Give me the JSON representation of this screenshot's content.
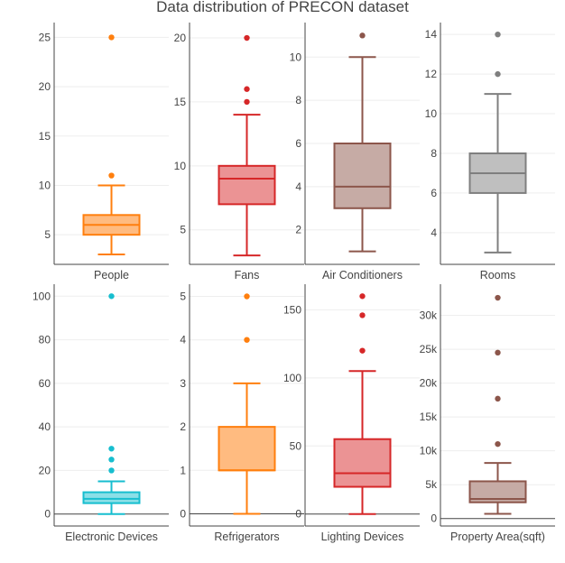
{
  "title": "Data distribution of PRECON dataset",
  "chart_data": [
    {
      "type": "box",
      "xlabel": "People",
      "color": "#ff7f0e",
      "fill": "#ffbb80",
      "ylim": [
        2,
        26.5
      ],
      "yticks": [
        5,
        10,
        15,
        20,
        25
      ],
      "tick_labels": [
        "5",
        "10",
        "15",
        "20",
        "25"
      ],
      "min": 3,
      "q1": 5,
      "median": 6,
      "q3": 7,
      "max": 10,
      "outliers": [
        11,
        25
      ]
    },
    {
      "type": "box",
      "xlabel": "Fans",
      "color": "#d62728",
      "fill": "#eb9394",
      "ylim": [
        2.3,
        21.2
      ],
      "yticks": [
        5,
        10,
        15,
        20
      ],
      "tick_labels": [
        "5",
        "10",
        "15",
        "20"
      ],
      "min": 3,
      "q1": 7,
      "median": 9,
      "q3": 10,
      "max": 14,
      "outliers": [
        15,
        16,
        20
      ]
    },
    {
      "type": "box",
      "xlabel": "Air Conditioners",
      "color": "#8c564b",
      "fill": "#c6aba5",
      "ylim": [
        0.4,
        11.6
      ],
      "yticks": [
        2,
        4,
        6,
        8,
        10
      ],
      "tick_labels": [
        "2",
        "4",
        "6",
        "8",
        "10"
      ],
      "min": 1,
      "q1": 3,
      "median": 4,
      "q3": 6,
      "max": 10,
      "outliers": [
        11
      ]
    },
    {
      "type": "box",
      "xlabel": "Rooms",
      "color": "#7f7f7f",
      "fill": "#bfbfbf",
      "ylim": [
        2.4,
        14.6
      ],
      "yticks": [
        4,
        6,
        8,
        10,
        12,
        14
      ],
      "tick_labels": [
        "4",
        "6",
        "8",
        "10",
        "12",
        "14"
      ],
      "min": 3,
      "q1": 6,
      "median": 7,
      "q3": 8,
      "max": 11,
      "outliers": [
        12,
        14
      ]
    },
    {
      "type": "box",
      "xlabel": "Electronic Devices",
      "color": "#17becf",
      "fill": "#8bdfe7",
      "ylim": [
        -5.5,
        105.5
      ],
      "yticks": [
        0,
        20,
        40,
        60,
        80,
        100
      ],
      "tick_labels": [
        "0",
        "20",
        "40",
        "60",
        "80",
        "100"
      ],
      "min": 0,
      "q1": 5,
      "median": 7,
      "q3": 10,
      "max": 15,
      "outliers": [
        20,
        25,
        30,
        100
      ]
    },
    {
      "type": "box",
      "xlabel": "Refrigerators",
      "color": "#ff7f0e",
      "fill": "#ffbb80",
      "ylim": [
        -0.28,
        5.28
      ],
      "yticks": [
        0,
        1,
        2,
        3,
        4,
        5
      ],
      "tick_labels": [
        "0",
        "1",
        "2",
        "3",
        "4",
        "5"
      ],
      "min": 0,
      "q1": 1,
      "median": 1,
      "q3": 2,
      "max": 3,
      "outliers": [
        4,
        5
      ]
    },
    {
      "type": "box",
      "xlabel": "Lighting Devices",
      "color": "#d62728",
      "fill": "#eb9394",
      "ylim": [
        -8.8,
        168.8
      ],
      "yticks": [
        0,
        50,
        100,
        150
      ],
      "tick_labels": [
        "0",
        "50",
        "100",
        "150"
      ],
      "min": 0,
      "q1": 20,
      "median": 30,
      "q3": 55,
      "max": 105,
      "outliers": [
        120,
        146,
        160
      ]
    },
    {
      "type": "box",
      "xlabel": "Property Area(sqft)",
      "color": "#8c564b",
      "fill": "#c6aba5",
      "ylim": [
        -1100,
        34600
      ],
      "yticks": [
        0,
        5000,
        10000,
        15000,
        20000,
        25000,
        30000
      ],
      "tick_labels": [
        "0",
        "5k",
        "10k",
        "15k",
        "20k",
        "25k",
        "30k"
      ],
      "min": 700,
      "q1": 2400,
      "median": 2900,
      "q3": 5500,
      "max": 8200,
      "outliers": [
        11000,
        17700,
        24500,
        32600
      ]
    }
  ]
}
